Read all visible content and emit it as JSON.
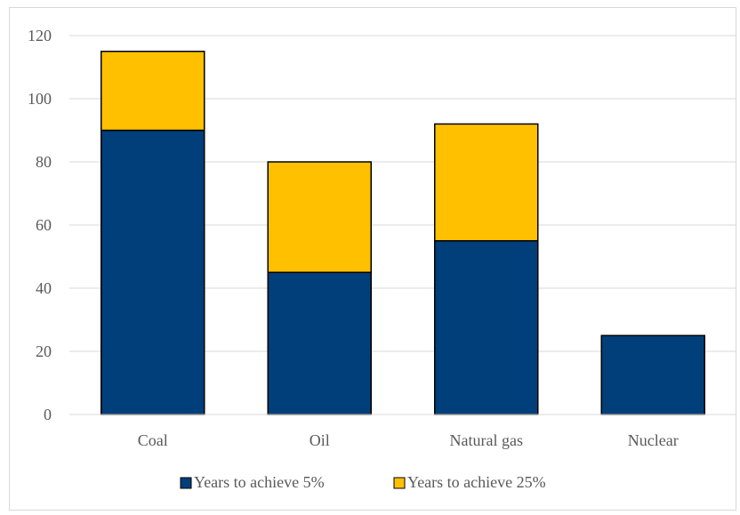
{
  "chart_data": {
    "type": "bar",
    "stacked": true,
    "categories": [
      "Coal",
      "Oil",
      "Natural gas",
      "Nuclear"
    ],
    "series": [
      {
        "name": "Years to achieve 5%",
        "values": [
          90,
          45,
          55,
          25
        ],
        "color": "#003f7a"
      },
      {
        "name": "Years to achieve 25%",
        "values": [
          25,
          35,
          37,
          0
        ],
        "color": "#ffc000"
      }
    ],
    "ylim": [
      0,
      120
    ],
    "yticks": [
      0,
      20,
      40,
      60,
      80,
      100,
      120
    ],
    "grid": true,
    "legend": "bottom"
  }
}
